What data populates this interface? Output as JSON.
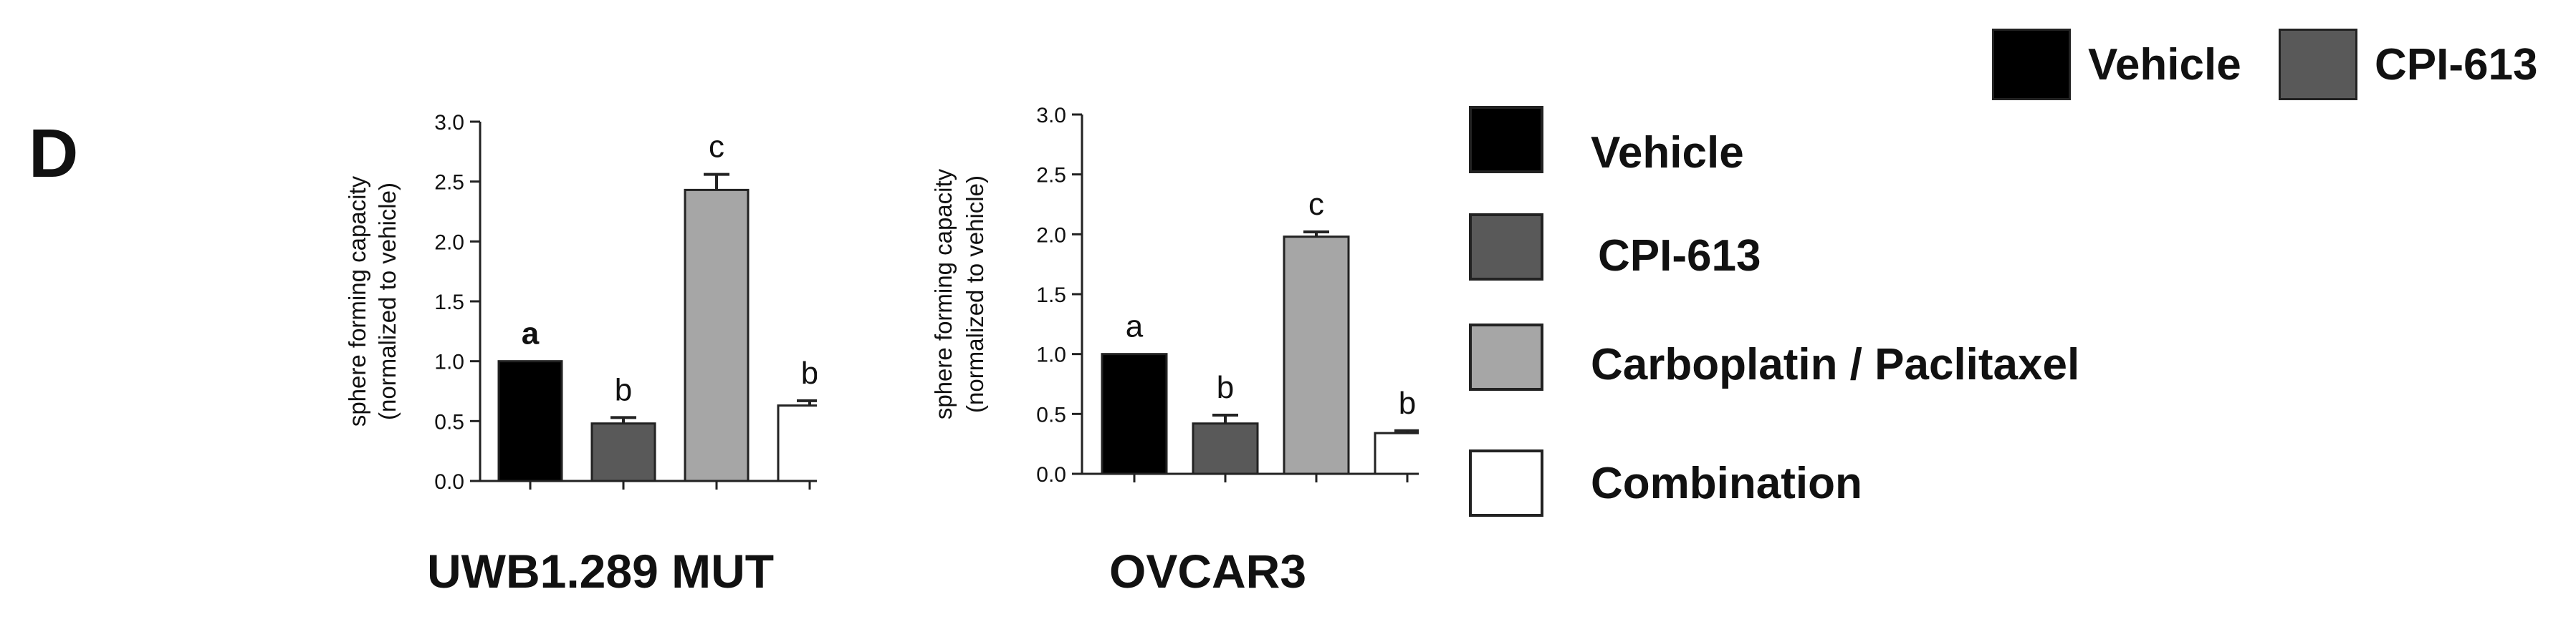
{
  "panel_letter": "D",
  "top_legend": [
    {
      "label": "Vehicle",
      "color": "#000000"
    },
    {
      "label": "CPI-613",
      "color": "#595959"
    }
  ],
  "right_legend": [
    {
      "label": "Vehicle",
      "color": "#000000"
    },
    {
      "label": "CPI-613",
      "color": "#595959"
    },
    {
      "label": "Carboplatin / Paclitaxel",
      "color": "#a6a6a6"
    },
    {
      "label": "Combination",
      "color": "#ffffff"
    }
  ],
  "chart_data": [
    {
      "type": "bar",
      "title": "UWB1.289 MUT",
      "ylabel_line1": "sphere forming capacity",
      "ylabel_line2": "(normalized to vehicle)",
      "ylim": [
        0,
        3.0
      ],
      "yticks": [
        "0.0",
        "0.5",
        "1.0",
        "1.5",
        "2.0",
        "2.5",
        "3.0"
      ],
      "categories": [
        "Vehicle",
        "CPI-613",
        "Carboplatin / Paclitaxel",
        "Combination"
      ],
      "values": [
        1.0,
        0.48,
        2.43,
        0.63
      ],
      "errors": [
        0.0,
        0.05,
        0.13,
        0.04
      ],
      "letters": [
        "a",
        "b",
        "c",
        "b"
      ],
      "colors": [
        "#000000",
        "#595959",
        "#a6a6a6",
        "#ffffff"
      ]
    },
    {
      "type": "bar",
      "title": "OVCAR3",
      "ylabel_line1": "sphere forming capacity",
      "ylabel_line2": "(normalized to vehicle)",
      "ylim": [
        0,
        3.0
      ],
      "yticks": [
        "0.0",
        "0.5",
        "1.0",
        "1.5",
        "2.0",
        "2.5",
        "3.0"
      ],
      "categories": [
        "Vehicle",
        "CPI-613",
        "Carboplatin / Paclitaxel",
        "Combination"
      ],
      "values": [
        1.0,
        0.42,
        1.98,
        0.34
      ],
      "errors": [
        0.0,
        0.07,
        0.04,
        0.02
      ],
      "letters": [
        "a",
        "b",
        "c",
        "b"
      ],
      "colors": [
        "#000000",
        "#595959",
        "#a6a6a6",
        "#ffffff"
      ]
    }
  ]
}
